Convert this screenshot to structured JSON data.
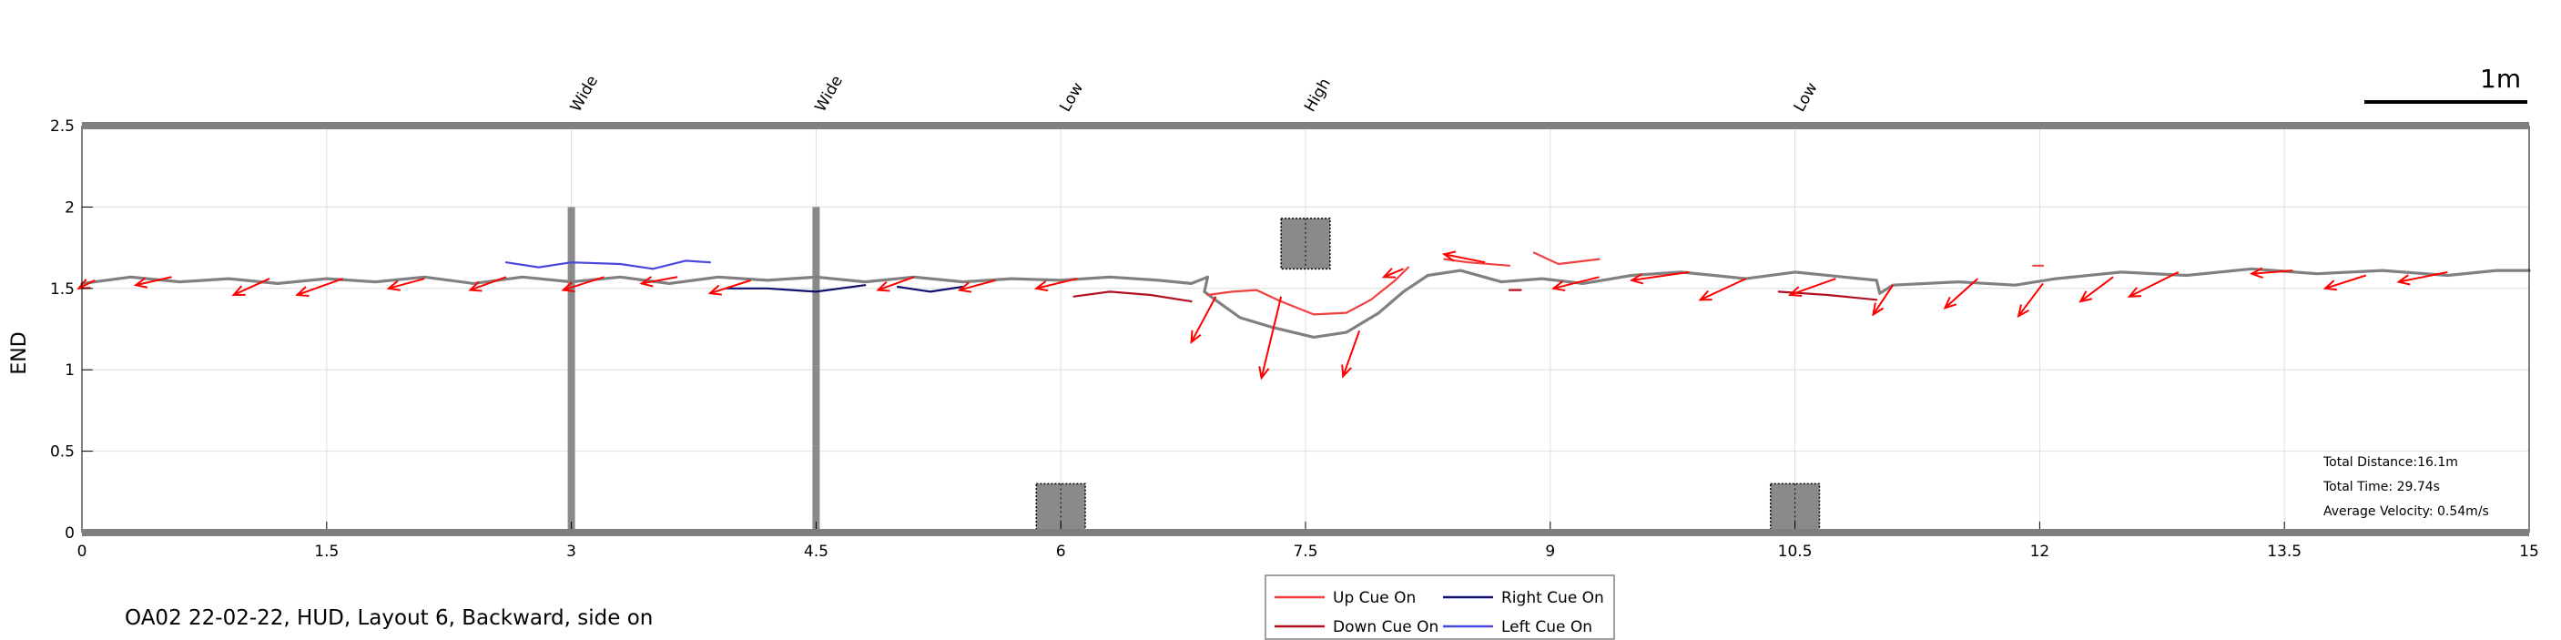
{
  "chart_data": {
    "type": "line",
    "ylabel": "END",
    "xlim": [
      0,
      15
    ],
    "ylim": [
      0,
      2.5
    ],
    "x_ticks": [
      0,
      1.5,
      3,
      4.5,
      6,
      7.5,
      9,
      10.5,
      12,
      13.5,
      15
    ],
    "x_tick_labels": [
      "0",
      "1.5",
      "3",
      "4.5",
      "6",
      "7.5",
      "9",
      "10.5",
      "12",
      "13.5",
      "15"
    ],
    "y_ticks": [
      0,
      0.5,
      1,
      1.5,
      2,
      2.5
    ],
    "y_tick_labels": [
      "0",
      "0.5",
      "1",
      "1.5",
      "2",
      "2.5"
    ],
    "grid": true,
    "scale_bar_label": "1m",
    "obstacles": [
      {
        "label": "Wide",
        "kind": "pole",
        "x": 3.0,
        "y0": 0,
        "y1": 2.0
      },
      {
        "label": "Wide",
        "kind": "pole",
        "x": 4.5,
        "y0": 0,
        "y1": 2.0
      },
      {
        "label": "Low",
        "kind": "box",
        "x0": 5.85,
        "x1": 6.15,
        "y0": 0,
        "y1": 0.3
      },
      {
        "label": "High",
        "kind": "box",
        "x0": 7.35,
        "x1": 7.65,
        "y0": 1.62,
        "y1": 1.93
      },
      {
        "label": "Low",
        "kind": "box",
        "x0": 10.35,
        "x1": 10.65,
        "y0": 0,
        "y1": 0.3
      }
    ],
    "series": [
      {
        "name": "Path",
        "color": "#808080",
        "segments": [
          [
            [
              0,
              1.53
            ],
            [
              0.3,
              1.57
            ],
            [
              0.6,
              1.54
            ],
            [
              0.9,
              1.56
            ],
            [
              1.2,
              1.53
            ],
            [
              1.5,
              1.56
            ],
            [
              1.8,
              1.54
            ],
            [
              2.1,
              1.57
            ],
            [
              2.4,
              1.53
            ],
            [
              2.7,
              1.57
            ],
            [
              3.0,
              1.54
            ],
            [
              3.3,
              1.57
            ],
            [
              3.6,
              1.53
            ],
            [
              3.9,
              1.57
            ],
            [
              4.2,
              1.55
            ],
            [
              4.5,
              1.57
            ],
            [
              4.8,
              1.54
            ],
            [
              5.1,
              1.57
            ],
            [
              5.4,
              1.54
            ],
            [
              5.7,
              1.56
            ],
            [
              6.0,
              1.55
            ],
            [
              6.3,
              1.57
            ],
            [
              6.6,
              1.55
            ],
            [
              6.8,
              1.53
            ],
            [
              6.9,
              1.57
            ],
            [
              6.88,
              1.48
            ],
            [
              6.96,
              1.42
            ],
            [
              7.1,
              1.32
            ],
            [
              7.3,
              1.26
            ],
            [
              7.55,
              1.2
            ],
            [
              7.75,
              1.23
            ],
            [
              7.95,
              1.35
            ],
            [
              8.1,
              1.48
            ],
            [
              8.25,
              1.58
            ],
            [
              8.45,
              1.61
            ],
            [
              8.7,
              1.54
            ],
            [
              8.95,
              1.56
            ],
            [
              9.2,
              1.53
            ],
            [
              9.5,
              1.58
            ],
            [
              9.8,
              1.6
            ],
            [
              10.2,
              1.56
            ],
            [
              10.5,
              1.6
            ],
            [
              10.8,
              1.57
            ],
            [
              11.0,
              1.55
            ],
            [
              11.02,
              1.47
            ],
            [
              11.1,
              1.52
            ],
            [
              11.5,
              1.54
            ],
            [
              11.85,
              1.52
            ],
            [
              12.1,
              1.56
            ],
            [
              12.5,
              1.6
            ],
            [
              12.9,
              1.58
            ],
            [
              13.3,
              1.62
            ],
            [
              13.7,
              1.59
            ],
            [
              14.1,
              1.61
            ],
            [
              14.5,
              1.58
            ],
            [
              14.8,
              1.61
            ],
            [
              15,
              1.61
            ]
          ]
        ]
      },
      {
        "name": "Up Cue On",
        "color": "#f04040",
        "segments": [
          [
            [
              6.9,
              1.46
            ],
            [
              7.05,
              1.48
            ],
            [
              7.2,
              1.49
            ],
            [
              7.35,
              1.42
            ],
            [
              7.55,
              1.34
            ],
            [
              7.75,
              1.35
            ],
            [
              7.9,
              1.43
            ],
            [
              8.05,
              1.55
            ],
            [
              8.13,
              1.63
            ]
          ],
          [
            [
              8.35,
              1.68
            ],
            [
              8.5,
              1.66
            ],
            [
              8.75,
              1.64
            ]
          ],
          [
            [
              8.9,
              1.72
            ],
            [
              9.05,
              1.65
            ],
            [
              9.3,
              1.68
            ]
          ],
          [
            [
              11.96,
              1.64
            ],
            [
              12.02,
              1.64
            ]
          ]
        ]
      },
      {
        "name": "Down Cue On",
        "color": "#b01020",
        "segments": [
          [
            [
              6.08,
              1.45
            ],
            [
              6.3,
              1.48
            ],
            [
              6.55,
              1.46
            ],
            [
              6.8,
              1.42
            ]
          ],
          [
            [
              8.75,
              1.49
            ],
            [
              8.82,
              1.49
            ]
          ],
          [
            [
              10.4,
              1.48
            ],
            [
              10.7,
              1.46
            ],
            [
              11.0,
              1.43
            ]
          ]
        ]
      },
      {
        "name": "Right Cue On",
        "color": "#101070",
        "segments": [
          [
            [
              3.95,
              1.5
            ],
            [
              4.2,
              1.5
            ],
            [
              4.5,
              1.48
            ],
            [
              4.8,
              1.52
            ]
          ],
          [
            [
              5.0,
              1.51
            ],
            [
              5.2,
              1.48
            ],
            [
              5.4,
              1.51
            ]
          ]
        ]
      },
      {
        "name": "Left Cue On",
        "color": "#4848e0",
        "segments": [
          [
            [
              2.6,
              1.66
            ],
            [
              2.8,
              1.63
            ],
            [
              3.0,
              1.66
            ],
            [
              3.3,
              1.65
            ],
            [
              3.5,
              1.62
            ],
            [
              3.7,
              1.67
            ],
            [
              3.85,
              1.66
            ]
          ]
        ]
      }
    ],
    "arrow_color": "#ff0000",
    "arrows": [
      [
        0.08,
        1.55,
        -0.1,
        -0.05
      ],
      [
        0.55,
        1.57,
        -0.22,
        -0.05
      ],
      [
        1.15,
        1.56,
        -0.22,
        -0.1
      ],
      [
        1.6,
        1.56,
        -0.28,
        -0.1
      ],
      [
        2.1,
        1.56,
        -0.22,
        -0.06
      ],
      [
        2.6,
        1.57,
        -0.22,
        -0.08
      ],
      [
        3.2,
        1.57,
        -0.25,
        -0.08
      ],
      [
        3.65,
        1.57,
        -0.22,
        -0.04
      ],
      [
        4.1,
        1.55,
        -0.25,
        -0.08
      ],
      [
        5.1,
        1.57,
        -0.22,
        -0.08
      ],
      [
        5.6,
        1.55,
        -0.22,
        -0.06
      ],
      [
        6.1,
        1.56,
        -0.25,
        -0.06
      ],
      [
        6.95,
        1.45,
        -0.15,
        -0.28
      ],
      [
        7.35,
        1.45,
        -0.12,
        -0.5
      ],
      [
        7.83,
        1.24,
        -0.1,
        -0.28
      ],
      [
        8.1,
        1.62,
        -0.12,
        -0.05
      ],
      [
        8.6,
        1.66,
        -0.25,
        0.05
      ],
      [
        9.3,
        1.57,
        -0.28,
        -0.07
      ],
      [
        9.85,
        1.6,
        -0.35,
        -0.05
      ],
      [
        10.2,
        1.56,
        -0.28,
        -0.13
      ],
      [
        10.75,
        1.56,
        -0.28,
        -0.1
      ],
      [
        11.1,
        1.52,
        -0.12,
        -0.18
      ],
      [
        11.62,
        1.56,
        -0.2,
        -0.18
      ],
      [
        12.02,
        1.53,
        -0.15,
        -0.2
      ],
      [
        12.45,
        1.57,
        -0.2,
        -0.15
      ],
      [
        12.85,
        1.6,
        -0.3,
        -0.15
      ],
      [
        13.55,
        1.61,
        -0.25,
        -0.02
      ],
      [
        14.0,
        1.58,
        -0.25,
        -0.08
      ],
      [
        14.5,
        1.6,
        -0.3,
        -0.06
      ]
    ],
    "stats": [
      {
        "label": "Total Distance:",
        "value": "16.1m"
      },
      {
        "label": "Total Time: ",
        "value": "29.74s"
      },
      {
        "label": "Average Velocity: ",
        "value": "0.54m/s"
      }
    ],
    "legend": {
      "placement": "bottom-center",
      "entries": [
        {
          "label": "Up Cue On",
          "color": "#f04040"
        },
        {
          "label": "Right Cue On",
          "color": "#101070"
        },
        {
          "label": "Down Cue On",
          "color": "#b01020"
        },
        {
          "label": "Left Cue On",
          "color": "#4848e0"
        }
      ]
    },
    "caption": "OA02 22-02-22, HUD, Layout 6, Backward, side on"
  }
}
